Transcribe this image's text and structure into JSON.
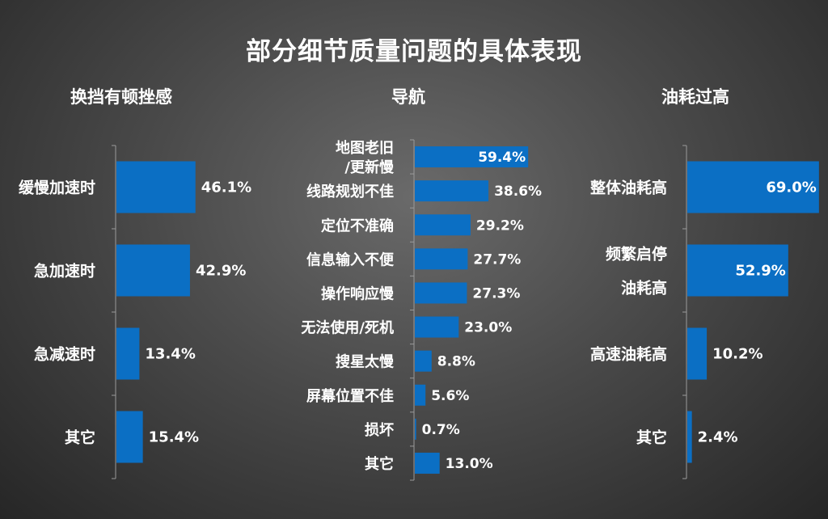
{
  "title": "部分细节质量问题的具体表现",
  "colors": {
    "bar": "#0b6fc4",
    "axis": "#9a9a9a",
    "text": "#ffffff"
  },
  "chart_data": [
    {
      "type": "bar",
      "orientation": "horizontal",
      "title": "换挡有顿挫感",
      "categories": [
        "缓慢加速时",
        "急加速时",
        "急减速时",
        "其它"
      ],
      "values": [
        46.1,
        42.9,
        13.4,
        15.4
      ],
      "value_labels": [
        "46.1%",
        "42.9%",
        "13.4%",
        "15.4%"
      ],
      "xlim": [
        0,
        100
      ]
    },
    {
      "type": "bar",
      "orientation": "horizontal",
      "title": "导航",
      "categories": [
        "地图老旧\n/更新慢",
        "线路规划不佳",
        "定位不准确",
        "信息输入不便",
        "操作响应慢",
        "无法使用/死机",
        "搜星太慢",
        "屏幕位置不佳",
        "损坏",
        "其它"
      ],
      "values": [
        59.4,
        38.6,
        29.2,
        27.7,
        27.3,
        23.0,
        8.8,
        5.6,
        0.7,
        13.0
      ],
      "value_labels": [
        "59.4%",
        "38.6%",
        "29.2%",
        "27.7%",
        "27.3%",
        "23.0%",
        "8.8%",
        "5.6%",
        "0.7%",
        "13.0%"
      ],
      "xlim": [
        0,
        100
      ]
    },
    {
      "type": "bar",
      "orientation": "horizontal",
      "title": "油耗过高",
      "categories": [
        "整体油耗高",
        "频繁启停\n油耗高",
        "高速油耗高",
        "其它"
      ],
      "values": [
        69.0,
        52.9,
        10.2,
        2.4
      ],
      "value_labels": [
        "69.0%",
        "52.9%",
        "10.2%",
        "2.4%"
      ],
      "xlim": [
        0,
        100
      ]
    }
  ]
}
